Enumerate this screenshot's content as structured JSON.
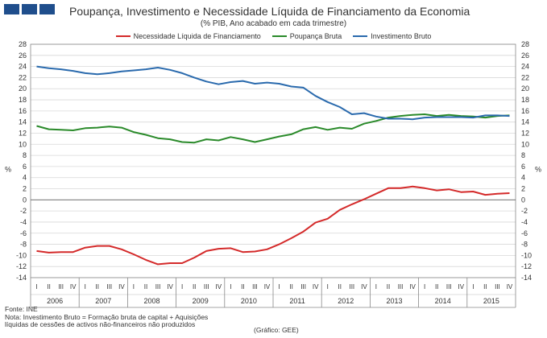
{
  "header": {
    "title": "Poupança, Investimento e Necessidade Líquida de Financiamento da Economia",
    "subtitle": "(% PIB, Ano acabado em cada trimestre)"
  },
  "footer": {
    "source": "Fonte: INE",
    "note_line1": "Nota: Investimento Bruto = Formação bruta de capital + Aquisições",
    "note_line2": "líquidas de cessões de activos não-financeiros não produzidos",
    "credit": "(Gráfico: GEE)"
  },
  "chart_data": {
    "type": "line",
    "ylabel": "%",
    "ylim": [
      -14,
      28
    ],
    "ytick_step": 2,
    "yticks": [
      "-14",
      "-12",
      "-10",
      "-8",
      "-6",
      "-4",
      "-2",
      "0",
      "2",
      "4",
      "6",
      "8",
      "10",
      "12",
      "14",
      "16",
      "18",
      "20",
      "22",
      "24",
      "26",
      "28"
    ],
    "grid": true,
    "legend_position": "top-center",
    "quarter_labels": [
      "I",
      "II",
      "III",
      "IV"
    ],
    "years": [
      "2006",
      "2007",
      "2008",
      "2009",
      "2010",
      "2011",
      "2012",
      "2013",
      "2014",
      "2015"
    ],
    "series": [
      {
        "name": "Necessidade Líquida de Financiamento",
        "color": "#d42a2a",
        "values": [
          -9.2,
          -9.5,
          -9.4,
          -9.4,
          -8.6,
          -8.3,
          -8.3,
          -8.9,
          -9.8,
          -10.8,
          -11.6,
          -11.4,
          -11.4,
          -10.4,
          -9.2,
          -8.8,
          -8.7,
          -9.4,
          -9.3,
          -8.9,
          -8.0,
          -6.9,
          -5.7,
          -4.1,
          -3.4,
          -1.8,
          -0.8,
          0.1,
          1.1,
          2.1,
          2.1,
          2.4,
          2.1,
          1.7,
          1.9,
          1.4,
          1.5,
          0.9,
          1.1,
          1.2
        ]
      },
      {
        "name": "Poupança Bruta",
        "color": "#2a8a2a",
        "values": [
          13.3,
          12.7,
          12.6,
          12.5,
          12.9,
          13.0,
          13.2,
          13.0,
          12.2,
          11.7,
          11.1,
          10.9,
          10.4,
          10.3,
          10.9,
          10.7,
          11.3,
          10.9,
          10.4,
          10.9,
          11.4,
          11.8,
          12.7,
          13.1,
          12.6,
          13.0,
          12.8,
          13.7,
          14.2,
          14.8,
          15.1,
          15.3,
          15.4,
          15.1,
          15.3,
          15.1,
          15.0,
          14.8,
          15.1,
          15.2
        ]
      },
      {
        "name": "Investimento Bruto",
        "color": "#2a6aad",
        "values": [
          24.0,
          23.7,
          23.5,
          23.2,
          22.8,
          22.6,
          22.8,
          23.1,
          23.3,
          23.5,
          23.8,
          23.4,
          22.8,
          22.0,
          21.3,
          20.8,
          21.2,
          21.4,
          20.9,
          21.1,
          20.9,
          20.4,
          20.2,
          18.7,
          17.6,
          16.7,
          15.4,
          15.6,
          15.0,
          14.6,
          14.6,
          14.5,
          14.8,
          14.9,
          14.9,
          14.9,
          14.8,
          15.2,
          15.2,
          15.1
        ]
      }
    ]
  }
}
